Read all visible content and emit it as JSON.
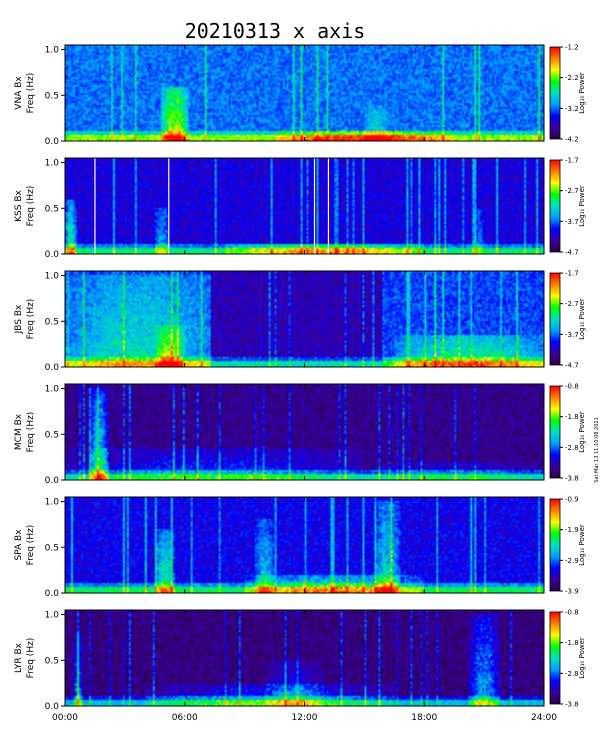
{
  "chart_data": {
    "type": "heatmap",
    "title": "20210313 x axis",
    "timestamp": "Sat Mar 13 11:10:08 2021",
    "x_tick_labels": [
      "00:00",
      "06:00",
      "12:00",
      "18:00",
      "24:00"
    ],
    "x_ticks": [
      0,
      6,
      12,
      18,
      24
    ],
    "xlim": [
      0,
      24
    ],
    "ylim": [
      0,
      1.05
    ],
    "y_ticks": [
      0.0,
      0.5,
      1.0
    ],
    "y_tick_labels": [
      "0.0",
      "0.5",
      "1.0"
    ],
    "colorbar_label": "Log₁₀ Power",
    "colormap_stops": [
      "#2a0040",
      "#3a00a0",
      "#0000ff",
      "#00a0ff",
      "#00e0c0",
      "#00ff00",
      "#ffff00",
      "#ff8000",
      "#ff0000"
    ],
    "panels": [
      {
        "station": "VNA Bx",
        "ylabel": "Freq (Hz)",
        "cb_range": [
          -4.2,
          -1.2
        ],
        "cb_ticks": [
          "-1.2",
          "-2.2",
          "-3.2",
          "-4.2"
        ],
        "base": 0.34,
        "events": [
          {
            "t0": 4.8,
            "t1": 6.2,
            "fmax": 0.6,
            "amp": 0.45
          },
          {
            "t0": 10.5,
            "t1": 19.5,
            "fmax": 0.12,
            "amp": 0.35
          },
          {
            "t0": 15.0,
            "t1": 16.2,
            "fmax": 0.4,
            "amp": 0.15
          }
        ],
        "gaps": [],
        "dark_spans": []
      },
      {
        "station": "KSS Bx",
        "ylabel": "Freq (Hz)",
        "cb_range": [
          -4.7,
          -1.7
        ],
        "cb_ticks": [
          "-1.7",
          "-2.7",
          "-3.7",
          "-4.7"
        ],
        "base": 0.2,
        "events": [
          {
            "t0": 0.0,
            "t1": 0.6,
            "fmax": 0.6,
            "amp": 0.4
          },
          {
            "t0": 4.5,
            "t1": 5.2,
            "fmax": 0.5,
            "amp": 0.25
          },
          {
            "t0": 8.0,
            "t1": 18.0,
            "fmax": 0.12,
            "amp": 0.35
          },
          {
            "t0": 20.5,
            "t1": 21.0,
            "fmax": 0.5,
            "amp": 0.2
          }
        ],
        "gaps": [
          1.5,
          5.2,
          12.5,
          13.2
        ],
        "dark_spans": []
      },
      {
        "station": "JBS Bx",
        "ylabel": "Freq (Hz)",
        "cb_range": [
          -4.7,
          -1.7
        ],
        "cb_ticks": [
          "-1.7",
          "-2.7",
          "-3.7",
          "-4.7"
        ],
        "base": 0.3,
        "events": [
          {
            "t0": 0.0,
            "t1": 7.3,
            "fmax": 1.0,
            "amp": 0.22
          },
          {
            "t0": 4.5,
            "t1": 6.0,
            "fmax": 0.45,
            "amp": 0.3
          },
          {
            "t0": 16.5,
            "t1": 24.0,
            "fmax": 0.35,
            "amp": 0.3
          }
        ],
        "gaps": [],
        "dark_spans": [
          {
            "t0": 7.3,
            "t1": 16.0,
            "level": 0.15
          }
        ]
      },
      {
        "station": "MCM Bx",
        "ylabel": "Freq (Hz)",
        "cb_range": [
          -3.8,
          -0.8
        ],
        "cb_ticks": [
          "-0.8",
          "-1.8",
          "-2.8",
          "-3.8"
        ],
        "base": 0.1,
        "events": [
          {
            "t0": 1.2,
            "t1": 2.2,
            "fmax": 1.0,
            "amp": 0.45
          },
          {
            "t0": 0.0,
            "t1": 15.0,
            "fmax": 0.35,
            "amp": 0.2
          },
          {
            "t0": 15.0,
            "t1": 24.0,
            "fmax": 0.2,
            "amp": 0.15
          }
        ],
        "gaps": [],
        "dark_spans": []
      },
      {
        "station": "SPA Bx",
        "ylabel": "Freq (Hz)",
        "cb_range": [
          -3.9,
          -0.9
        ],
        "cb_ticks": [
          "-0.9",
          "-1.9",
          "-2.9",
          "-3.9"
        ],
        "base": 0.22,
        "events": [
          {
            "t0": 4.5,
            "t1": 5.5,
            "fmax": 0.7,
            "amp": 0.35
          },
          {
            "t0": 9.0,
            "t1": 18.0,
            "fmax": 0.2,
            "amp": 0.35
          },
          {
            "t0": 15.5,
            "t1": 16.8,
            "fmax": 1.0,
            "amp": 0.3
          },
          {
            "t0": 9.5,
            "t1": 10.5,
            "fmax": 0.8,
            "amp": 0.25
          }
        ],
        "gaps": [],
        "dark_spans": []
      },
      {
        "station": "LYR Bx",
        "ylabel": "Freq (Hz)",
        "cb_range": [
          -3.8,
          -0.8
        ],
        "cb_ticks": [
          "-0.8",
          "-1.8",
          "-2.8",
          "-3.8"
        ],
        "base": 0.08,
        "events": [
          {
            "t0": 0.4,
            "t1": 0.9,
            "fmax": 0.8,
            "amp": 0.35
          },
          {
            "t0": 4.0,
            "t1": 16.5,
            "fmax": 0.25,
            "amp": 0.25
          },
          {
            "t0": 10.0,
            "t1": 13.0,
            "fmax": 0.5,
            "amp": 0.2
          },
          {
            "t0": 20.2,
            "t1": 21.8,
            "fmax": 1.0,
            "amp": 0.35
          }
        ],
        "gaps": [],
        "dark_spans": []
      }
    ]
  }
}
